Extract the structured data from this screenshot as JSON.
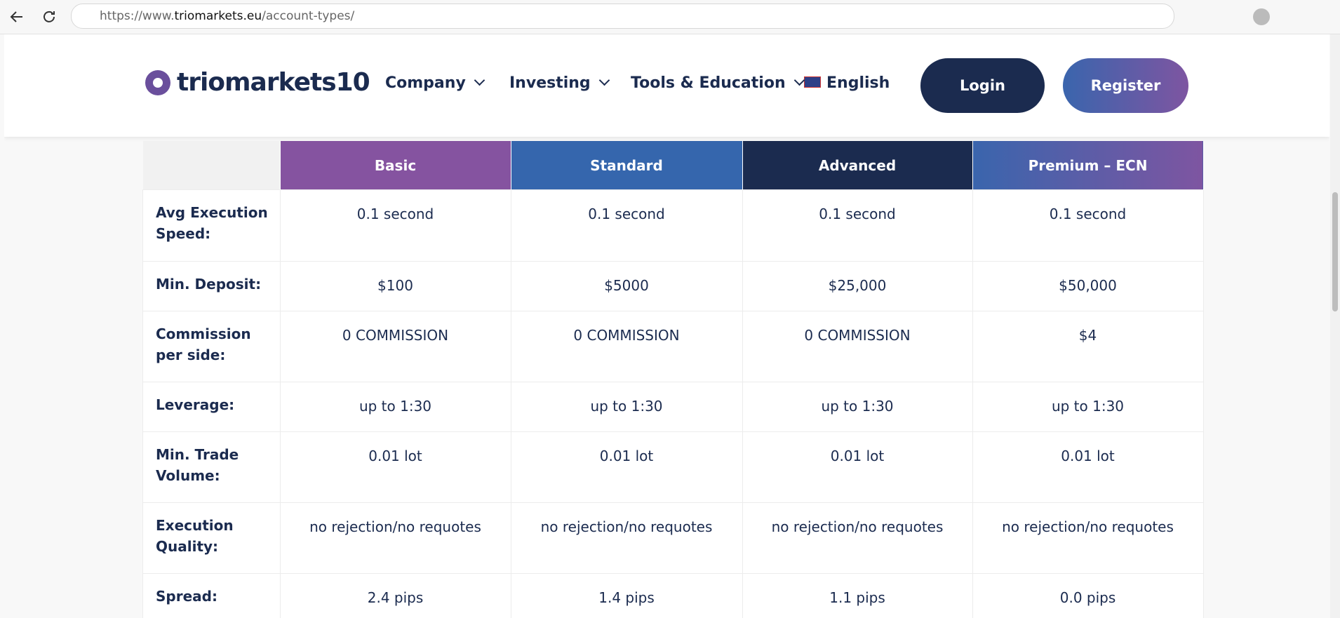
{
  "browser": {
    "url_prefix": "https://www.",
    "url_host": "triomarkets.eu",
    "url_path": "/account-types/"
  },
  "header": {
    "logo": "triomarkets",
    "logo_badge": "10",
    "nav": [
      "Company",
      "Investing",
      "Tools & Education"
    ],
    "language": "English",
    "login": "Login",
    "register": "Register"
  },
  "table": {
    "columns": [
      "Basic",
      "Standard",
      "Advanced",
      "Premium – ECN"
    ],
    "rows": [
      [
        "Avg Execution Speed:",
        "0.1 second",
        "0.1 second",
        "0.1 second",
        "0.1 second"
      ],
      [
        "Min. Deposit:",
        "$100",
        "$5000",
        "$25,000",
        "$50,000"
      ],
      [
        "Commission per side:",
        "0 COMMISSION",
        "0 COMMISSION",
        "0 COMMISSION",
        "$4"
      ],
      [
        "Leverage:",
        "up to 1:30",
        "up to 1:30",
        "up to 1:30",
        "up to 1:30"
      ],
      [
        "Min. Trade Volume:",
        "0.01 lot",
        "0.01 lot",
        "0.01 lot",
        "0.01 lot"
      ],
      [
        "Execution Quality:",
        "no rejection/no requotes",
        "no rejection/no requotes",
        "no rejection/no requotes",
        "no rejection/no requotes"
      ],
      [
        "Spread:",
        "2.4 pips",
        "1.4 pips",
        "1.1 pips",
        "0.0 pips"
      ]
    ]
  }
}
